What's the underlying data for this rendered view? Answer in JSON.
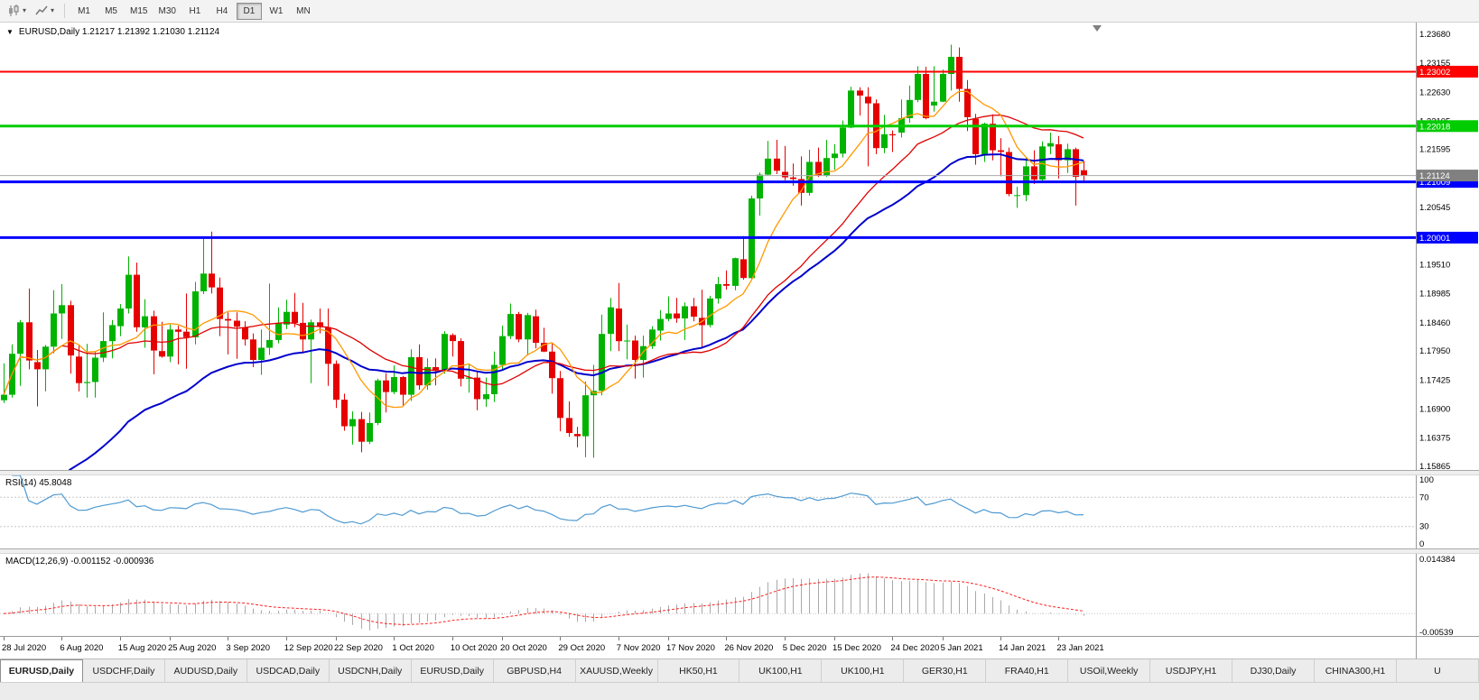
{
  "toolbar": {
    "timeframes": [
      {
        "label": "M1",
        "active": false
      },
      {
        "label": "M5",
        "active": false
      },
      {
        "label": "M15",
        "active": false
      },
      {
        "label": "M30",
        "active": false
      },
      {
        "label": "H1",
        "active": false
      },
      {
        "label": "H4",
        "active": false
      },
      {
        "label": "D1",
        "active": true
      },
      {
        "label": "W1",
        "active": false
      },
      {
        "label": "MN",
        "active": false
      }
    ]
  },
  "chart_data": {
    "type": "candlestick",
    "symbol_label": "EURUSD,Daily 1.21217 1.21392 1.21030 1.21124",
    "price_min": 1.158,
    "price_max": 1.2389,
    "colors": {
      "bull": "#00b300",
      "bear": "#e60000",
      "current_line": "#ababab"
    },
    "price_axis_labels": [
      "1.23680",
      "1.23155",
      "1.22630",
      "1.22105",
      "1.21595",
      "1.21070",
      "1.20545",
      "1.20020",
      "1.19510",
      "1.18985",
      "1.18460",
      "1.17950",
      "1.17425",
      "1.16900",
      "1.16375",
      "1.15865"
    ],
    "hlines": [
      {
        "price": 1.23002,
        "tag": "1.23002",
        "color": "#ff0000",
        "width": 2
      },
      {
        "price": 1.22018,
        "tag": "1.22018",
        "color": "#00cc00",
        "width": 3
      },
      {
        "price": 1.21009,
        "tag": "1.21009",
        "color": "#0000ff",
        "width": 3
      },
      {
        "price": 1.20001,
        "tag": "1.20001",
        "color": "#0000ff",
        "width": 3
      }
    ],
    "current_price": {
      "price": 1.21124,
      "tag": "1.21124",
      "color": "#808080"
    },
    "moving_averages": [
      {
        "method": "ema",
        "period": 32,
        "seed": 1.141,
        "color": "#0000cc",
        "width": 2,
        "name": "ma-slow-blue"
      },
      {
        "method": "sma",
        "period": 21,
        "color": "#e00000",
        "width": 1.3,
        "name": "ma-medium-red"
      },
      {
        "method": "sma",
        "period": 8,
        "color": "#ff9900",
        "width": 1.3,
        "name": "ma-fast-orange"
      }
    ],
    "candles": [
      [
        1.1706,
        1.1773,
        1.1701,
        1.1716
      ],
      [
        1.1716,
        1.1807,
        1.1711,
        1.179
      ],
      [
        1.179,
        1.1851,
        1.1732,
        1.1847
      ],
      [
        1.1847,
        1.1908,
        1.1762,
        1.1778
      ],
      [
        1.1775,
        1.1797,
        1.1695,
        1.1762
      ],
      [
        1.1762,
        1.1806,
        1.1722,
        1.1803
      ],
      [
        1.1803,
        1.1905,
        1.1791,
        1.1863
      ],
      [
        1.1863,
        1.1916,
        1.1817,
        1.1878
      ],
      [
        1.1878,
        1.1886,
        1.1754,
        1.1787
      ],
      [
        1.1785,
        1.1805,
        1.1722,
        1.1737
      ],
      [
        1.1737,
        1.1808,
        1.1711,
        1.1739
      ],
      [
        1.1739,
        1.1794,
        1.1711,
        1.1783
      ],
      [
        1.1783,
        1.1865,
        1.1775,
        1.1813
      ],
      [
        1.1813,
        1.1851,
        1.1782,
        1.1842
      ],
      [
        1.184,
        1.188,
        1.1822,
        1.1872
      ],
      [
        1.1872,
        1.1966,
        1.1863,
        1.1933
      ],
      [
        1.1933,
        1.1955,
        1.183,
        1.1838
      ],
      [
        1.1838,
        1.1889,
        1.1801,
        1.1858
      ],
      [
        1.1858,
        1.1868,
        1.1753,
        1.1796
      ],
      [
        1.1795,
        1.1848,
        1.1783,
        1.1785
      ],
      [
        1.1785,
        1.1843,
        1.1775,
        1.1834
      ],
      [
        1.1834,
        1.1841,
        1.1771,
        1.183
      ],
      [
        1.183,
        1.1899,
        1.1763,
        1.182
      ],
      [
        1.182,
        1.192,
        1.1807,
        1.1903
      ],
      [
        1.1903,
        1.1998,
        1.1898,
        1.1935
      ],
      [
        1.1935,
        1.2011,
        1.1899,
        1.191
      ],
      [
        1.191,
        1.1928,
        1.1822,
        1.1853
      ],
      [
        1.1853,
        1.1865,
        1.1789,
        1.185
      ],
      [
        1.185,
        1.1865,
        1.1781,
        1.1839
      ],
      [
        1.1838,
        1.1849,
        1.1805,
        1.1816
      ],
      [
        1.1816,
        1.1827,
        1.1766,
        1.1779
      ],
      [
        1.1779,
        1.1834,
        1.1752,
        1.1801
      ],
      [
        1.1801,
        1.1917,
        1.1788,
        1.1815
      ],
      [
        1.1815,
        1.1874,
        1.1809,
        1.1845
      ],
      [
        1.1843,
        1.1888,
        1.1835,
        1.1866
      ],
      [
        1.1866,
        1.19,
        1.1838,
        1.1846
      ],
      [
        1.1846,
        1.1882,
        1.1791,
        1.1816
      ],
      [
        1.1816,
        1.1852,
        1.1737,
        1.1847
      ],
      [
        1.1847,
        1.1872,
        1.1827,
        1.184
      ],
      [
        1.1838,
        1.1872,
        1.1732,
        1.1772
      ],
      [
        1.1772,
        1.1778,
        1.1692,
        1.1707
      ],
      [
        1.1707,
        1.1718,
        1.1651,
        1.1659
      ],
      [
        1.1659,
        1.1686,
        1.1626,
        1.1672
      ],
      [
        1.1672,
        1.1685,
        1.1612,
        1.1631
      ],
      [
        1.1631,
        1.1684,
        1.1627,
        1.1665
      ],
      [
        1.1665,
        1.1745,
        1.1661,
        1.1742
      ],
      [
        1.1742,
        1.1755,
        1.1684,
        1.1721
      ],
      [
        1.1721,
        1.1769,
        1.1717,
        1.1748
      ],
      [
        1.1748,
        1.175,
        1.1695,
        1.1716
      ],
      [
        1.1716,
        1.1798,
        1.1705,
        1.1784
      ],
      [
        1.1784,
        1.1807,
        1.1725,
        1.1733
      ],
      [
        1.1733,
        1.1782,
        1.1725,
        1.1766
      ],
      [
        1.1766,
        1.1782,
        1.1733,
        1.1761
      ],
      [
        1.1761,
        1.1831,
        1.1754,
        1.1826
      ],
      [
        1.1824,
        1.1827,
        1.1785,
        1.1813
      ],
      [
        1.1813,
        1.1818,
        1.1731,
        1.1745
      ],
      [
        1.1745,
        1.1772,
        1.172,
        1.1747
      ],
      [
        1.1747,
        1.1758,
        1.1688,
        1.1708
      ],
      [
        1.1708,
        1.1747,
        1.1694,
        1.1717
      ],
      [
        1.1717,
        1.1794,
        1.1703,
        1.177
      ],
      [
        1.177,
        1.1841,
        1.176,
        1.1822
      ],
      [
        1.1822,
        1.1881,
        1.1817,
        1.1862
      ],
      [
        1.1862,
        1.1866,
        1.1811,
        1.1816
      ],
      [
        1.1816,
        1.1864,
        1.1787,
        1.186
      ],
      [
        1.1858,
        1.187,
        1.18,
        1.181
      ],
      [
        1.181,
        1.1837,
        1.1793,
        1.1794
      ],
      [
        1.1794,
        1.181,
        1.1718,
        1.1746
      ],
      [
        1.1746,
        1.1759,
        1.165,
        1.1674
      ],
      [
        1.1674,
        1.1704,
        1.164,
        1.1647
      ],
      [
        1.1645,
        1.1658,
        1.1621,
        1.1641
      ],
      [
        1.1641,
        1.174,
        1.1603,
        1.1715
      ],
      [
        1.1715,
        1.177,
        1.1602,
        1.1723
      ],
      [
        1.1723,
        1.1861,
        1.1715,
        1.1826
      ],
      [
        1.1826,
        1.1891,
        1.1795,
        1.1874
      ],
      [
        1.1872,
        1.1918,
        1.1795,
        1.1813
      ],
      [
        1.1813,
        1.1843,
        1.178,
        1.1814
      ],
      [
        1.1814,
        1.1823,
        1.1745,
        1.1779
      ],
      [
        1.1779,
        1.1823,
        1.1747,
        1.1804
      ],
      [
        1.1804,
        1.184,
        1.1799,
        1.1834
      ],
      [
        1.1832,
        1.1869,
        1.1814,
        1.1853
      ],
      [
        1.1853,
        1.1894,
        1.1849,
        1.1863
      ],
      [
        1.1863,
        1.1891,
        1.1846,
        1.1854
      ],
      [
        1.1854,
        1.1883,
        1.1815,
        1.1876
      ],
      [
        1.1876,
        1.1891,
        1.1849,
        1.1857
      ],
      [
        1.1855,
        1.1906,
        1.18,
        1.1842
      ],
      [
        1.1842,
        1.1895,
        1.1838,
        1.189
      ],
      [
        1.189,
        1.1929,
        1.1881,
        1.1916
      ],
      [
        1.1916,
        1.1941,
        1.1906,
        1.1913
      ],
      [
        1.1913,
        1.1964,
        1.1905,
        1.1963
      ],
      [
        1.1961,
        1.2003,
        1.1924,
        1.1927
      ],
      [
        1.1927,
        1.2076,
        1.1923,
        1.2071
      ],
      [
        1.2071,
        1.2118,
        1.204,
        1.2114
      ],
      [
        1.2114,
        1.2175,
        1.2113,
        1.2143
      ],
      [
        1.2143,
        1.2177,
        1.2115,
        1.2121
      ],
      [
        1.2119,
        1.2166,
        1.2104,
        1.2109
      ],
      [
        1.2109,
        1.2134,
        1.2094,
        1.2106
      ],
      [
        1.2106,
        1.2147,
        1.2058,
        1.2081
      ],
      [
        1.2081,
        1.2159,
        1.2076,
        1.2137
      ],
      [
        1.2137,
        1.2163,
        1.211,
        1.2112
      ],
      [
        1.2112,
        1.2177,
        1.211,
        1.2144
      ],
      [
        1.2144,
        1.2169,
        1.2123,
        1.2152
      ],
      [
        1.2152,
        1.2212,
        1.2145,
        1.2199
      ],
      [
        1.2199,
        1.2273,
        1.2198,
        1.2266
      ],
      [
        1.2266,
        1.2272,
        1.2221,
        1.2257
      ],
      [
        1.2255,
        1.2272,
        1.2129,
        1.2243
      ],
      [
        1.2243,
        1.225,
        1.2151,
        1.2162
      ],
      [
        1.2162,
        1.2222,
        1.2153,
        1.2187
      ],
      [
        1.2187,
        1.2194,
        1.2155,
        1.2185
      ],
      [
        1.219,
        1.225,
        1.2181,
        1.2216
      ],
      [
        1.2216,
        1.2275,
        1.2208,
        1.2249
      ],
      [
        1.2249,
        1.231,
        1.2245,
        1.2296
      ],
      [
        1.2296,
        1.2309,
        1.2214,
        1.2216
      ],
      [
        1.2239,
        1.231,
        1.2228,
        1.2246
      ],
      [
        1.2246,
        1.2304,
        1.2245,
        1.2296
      ],
      [
        1.2296,
        1.2349,
        1.2266,
        1.2327
      ],
      [
        1.2327,
        1.2344,
        1.2246,
        1.2269
      ],
      [
        1.2269,
        1.2285,
        1.2193,
        1.2218
      ],
      [
        1.2215,
        1.2224,
        1.2132,
        1.2151
      ],
      [
        1.2151,
        1.2208,
        1.2137,
        1.2206
      ],
      [
        1.2206,
        1.2223,
        1.214,
        1.2158
      ],
      [
        1.2158,
        1.218,
        1.2111,
        1.2155
      ],
      [
        1.2155,
        1.2163,
        1.2075,
        1.2079
      ],
      [
        1.2077,
        1.2092,
        1.2054,
        1.2077
      ],
      [
        1.2077,
        1.2145,
        1.2066,
        1.2129
      ],
      [
        1.2129,
        1.2158,
        1.2097,
        1.2105
      ],
      [
        1.2105,
        1.2174,
        1.2102,
        1.2165
      ],
      [
        1.2165,
        1.219,
        1.2151,
        1.2171
      ],
      [
        1.2169,
        1.2184,
        1.2107,
        1.214
      ],
      [
        1.214,
        1.217,
        1.2117,
        1.216
      ],
      [
        1.216,
        1.2163,
        1.2058,
        1.211
      ],
      [
        1.2122,
        1.2139,
        1.2103,
        1.2112
      ]
    ],
    "x_labels": [
      {
        "label": "28 Jul 2020",
        "bar": 0
      },
      {
        "label": "6 Aug 2020",
        "bar": 7
      },
      {
        "label": "15 Aug 2020",
        "bar": 14
      },
      {
        "label": "25 Aug 2020",
        "bar": 20
      },
      {
        "label": "3 Sep 2020",
        "bar": 27
      },
      {
        "label": "12 Sep 2020",
        "bar": 34
      },
      {
        "label": "22 Sep 2020",
        "bar": 40
      },
      {
        "label": "1 Oct 2020",
        "bar": 47
      },
      {
        "label": "10 Oct 2020",
        "bar": 54
      },
      {
        "label": "20 Oct 2020",
        "bar": 60
      },
      {
        "label": "29 Oct 2020",
        "bar": 67
      },
      {
        "label": "7 Nov 2020",
        "bar": 74
      },
      {
        "label": "17 Nov 2020",
        "bar": 80
      },
      {
        "label": "26 Nov 2020",
        "bar": 87
      },
      {
        "label": "5 Dec 2020",
        "bar": 94
      },
      {
        "label": "15 Dec 2020",
        "bar": 100
      },
      {
        "label": "24 Dec 2020",
        "bar": 107
      },
      {
        "label": "5 Jan 2021",
        "bar": 113
      },
      {
        "label": "14 Jan 2021",
        "bar": 120
      },
      {
        "label": "23 Jan 2021",
        "bar": 127
      }
    ]
  },
  "rsi": {
    "label": "RSI(14) 45.8048",
    "period": 14,
    "color": "#4f9ad2",
    "axis_labels": [
      {
        "value": 100,
        "label": "100"
      },
      {
        "value": 70,
        "label": "70"
      },
      {
        "value": 30,
        "label": "30"
      },
      {
        "value": 0,
        "label": "0"
      }
    ],
    "dashed_levels": [
      70,
      30
    ]
  },
  "macd": {
    "label": "MACD(12,26,9) -0.001152 -0.000936",
    "fast": 12,
    "slow": 26,
    "signal": 9,
    "scale_max": 0.014384,
    "scale_min": -0.00539,
    "axis_top_label": "0.014384",
    "axis_bottom_label": "-0.00539",
    "histogram_color": "#a9a9a9",
    "signal_color": "#ff2020"
  },
  "tabs": [
    {
      "label": "EURUSD,Daily",
      "active": true
    },
    {
      "label": "USDCHF,Daily",
      "active": false
    },
    {
      "label": "AUDUSD,Daily",
      "active": false
    },
    {
      "label": "USDCAD,Daily",
      "active": false
    },
    {
      "label": "USDCNH,Daily",
      "active": false
    },
    {
      "label": "EURUSD,Daily",
      "active": false
    },
    {
      "label": "GBPUSD,H4",
      "active": false
    },
    {
      "label": "XAUUSD,Weekly",
      "active": false
    },
    {
      "label": "HK50,H1",
      "active": false
    },
    {
      "label": "UK100,H1",
      "active": false
    },
    {
      "label": "UK100,H1",
      "active": false
    },
    {
      "label": "GER30,H1",
      "active": false
    },
    {
      "label": "FRA40,H1",
      "active": false
    },
    {
      "label": "USOil,Weekly",
      "active": false
    },
    {
      "label": "USDJPY,H1",
      "active": false
    },
    {
      "label": "DJ30,Daily",
      "active": false
    },
    {
      "label": "CHINA300,H1",
      "active": false
    },
    {
      "label": "U",
      "active": false
    }
  ]
}
